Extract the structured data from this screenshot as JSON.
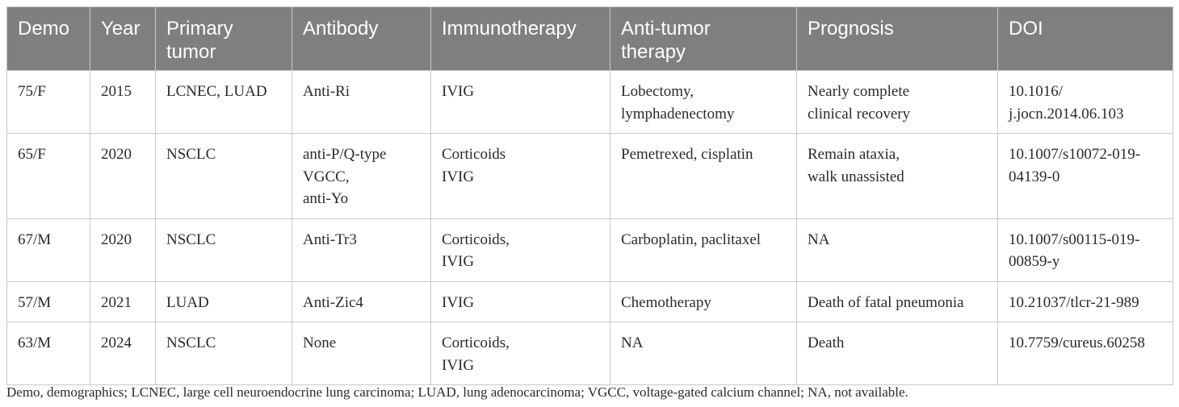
{
  "table": {
    "columns": [
      [
        "Demo"
      ],
      [
        "Year"
      ],
      [
        "Primary",
        "tumor"
      ],
      [
        "Antibody"
      ],
      [
        "Immunotherapy"
      ],
      [
        "Anti-tumor",
        "therapy"
      ],
      [
        "Prognosis"
      ],
      [
        "DOI"
      ]
    ],
    "rows": [
      [
        [
          "75/F"
        ],
        [
          "2015"
        ],
        [
          "LCNEC, LUAD"
        ],
        [
          "Anti-Ri"
        ],
        [
          "IVIG"
        ],
        [
          "Lobectomy,",
          "lymphadenectomy"
        ],
        [
          "Nearly complete",
          "clinical recovery"
        ],
        [
          "10.1016/",
          "j.jocn.2014.06.103"
        ]
      ],
      [
        [
          "65/F"
        ],
        [
          "2020"
        ],
        [
          "NSCLC"
        ],
        [
          "anti-P/Q-type",
          "VGCC,",
          "anti-Yo"
        ],
        [
          "Corticoids",
          "IVIG"
        ],
        [
          "Pemetrexed, cisplatin"
        ],
        [
          "Remain ataxia,",
          "walk unassisted"
        ],
        [
          "10.1007/s10072-019-",
          "04139-0"
        ]
      ],
      [
        [
          "67/M"
        ],
        [
          "2020"
        ],
        [
          "NSCLC"
        ],
        [
          "Anti-Tr3"
        ],
        [
          "Corticoids,",
          "IVIG"
        ],
        [
          "Carboplatin, paclitaxel"
        ],
        [
          "NA"
        ],
        [
          "10.1007/s00115-019-",
          "00859-y"
        ]
      ],
      [
        [
          "57/M"
        ],
        [
          "2021"
        ],
        [
          "LUAD"
        ],
        [
          "Anti-Zic4"
        ],
        [
          "IVIG"
        ],
        [
          "Chemotherapy"
        ],
        [
          "Death of fatal pneumonia"
        ],
        [
          "10.21037/tlcr-21-989"
        ]
      ],
      [
        [
          "63/M"
        ],
        [
          "2024"
        ],
        [
          "NSCLC"
        ],
        [
          "None"
        ],
        [
          "Corticoids,",
          "IVIG"
        ],
        [
          "NA"
        ],
        [
          "Death"
        ],
        [
          "10.7759/cureus.60258"
        ]
      ]
    ]
  },
  "footnote": "Demo, demographics; LCNEC, large cell neuroendocrine lung carcinoma; LUAD, lung adenocarcinoma; VGCC, voltage-gated calcium channel; NA, not available.",
  "colors": {
    "header_background": "#7f7f7f",
    "header_text": "#ffffff",
    "border": "#c8c8c8",
    "body_text": "#2a2a2a"
  }
}
